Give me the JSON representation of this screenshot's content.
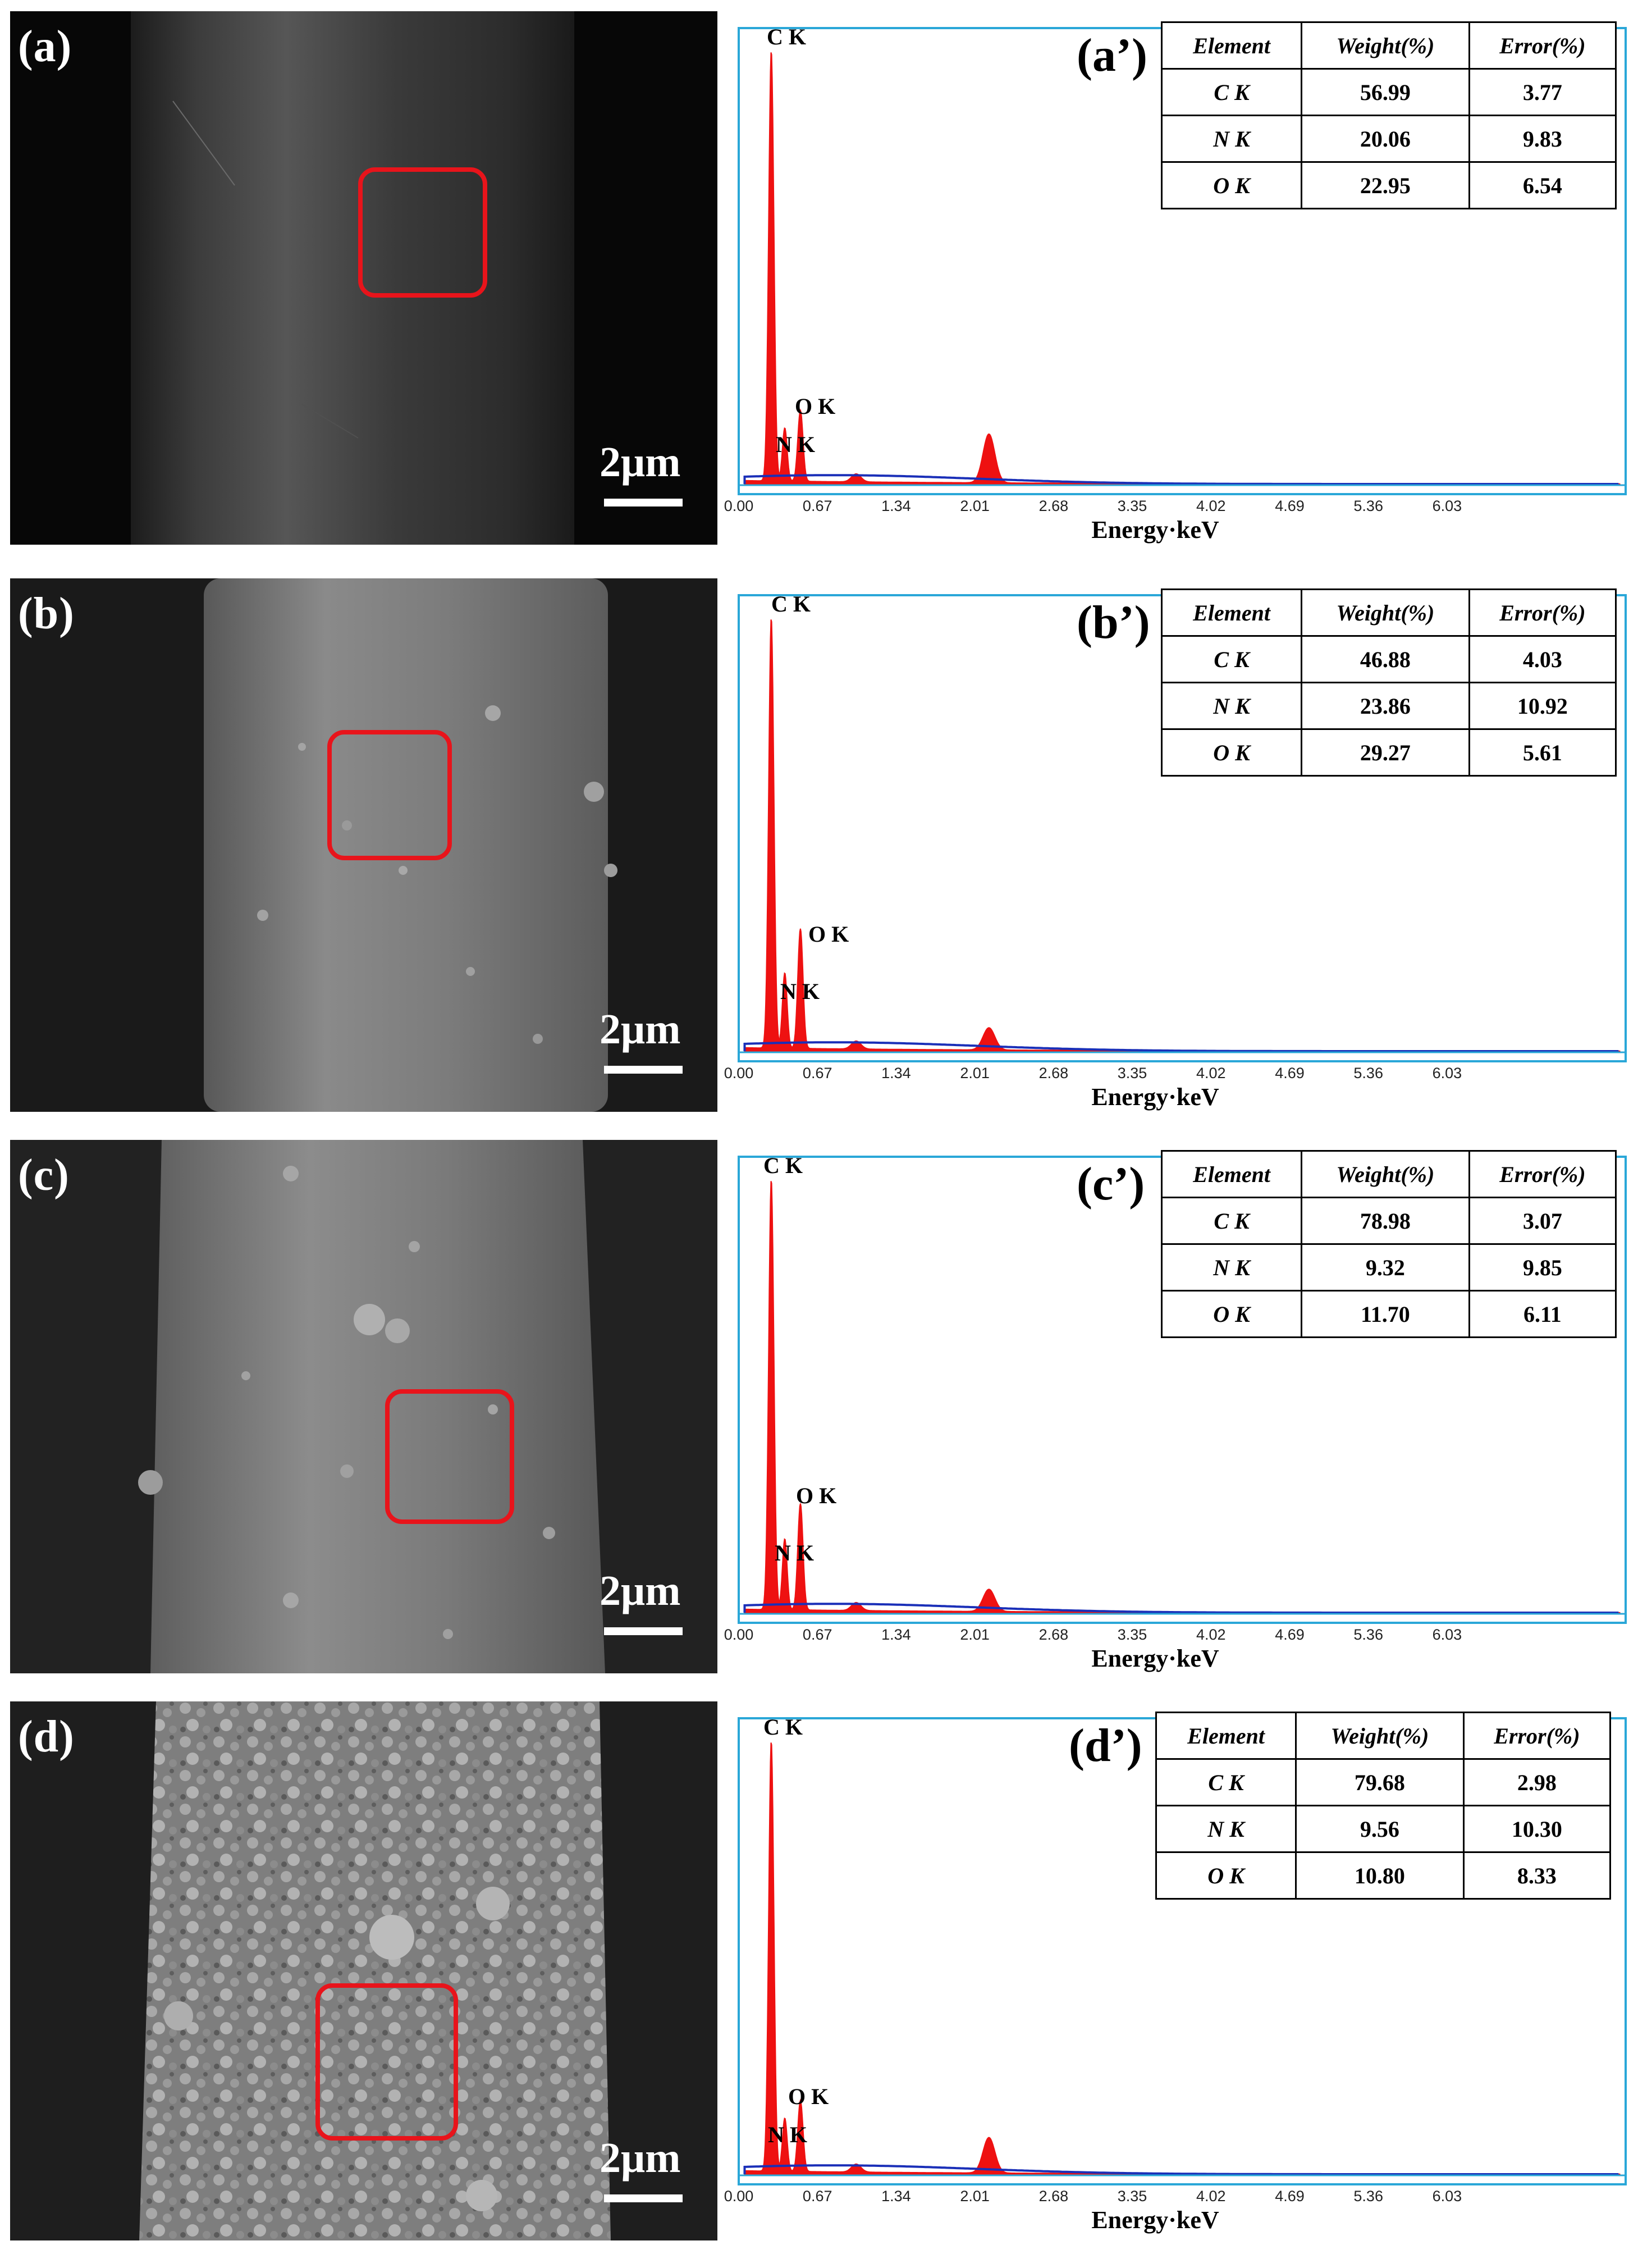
{
  "figure": {
    "scale_bar_text": "2μm",
    "axis_title": "Energy·keV",
    "x_ticks": [
      "0.00",
      "0.67",
      "1.34",
      "2.01",
      "2.68",
      "3.35",
      "4.02",
      "4.69",
      "5.36",
      "6.03"
    ],
    "table_headers": [
      "Element",
      "Weight(%)",
      "Error(%)"
    ],
    "peak_labels": {
      "c": "C K",
      "n": "N K",
      "o": "O K"
    },
    "colors": {
      "spectrum": "#ee1111",
      "background_trace": "#1a2fb8",
      "frame": "#2aa7d8",
      "roi": "#e8141b"
    }
  },
  "panels": [
    {
      "sem_label": "(a)",
      "eds_label": "(a’)",
      "rows": [
        {
          "element": "C K",
          "weight": "56.99",
          "error": "3.77"
        },
        {
          "element": "N K",
          "weight": "20.06",
          "error": "9.83"
        },
        {
          "element": "O K",
          "weight": "22.95",
          "error": "6.54"
        }
      ],
      "peaks": {
        "C": 0.97,
        "N": 0.12,
        "O": 0.16,
        "extra": 0.11
      }
    },
    {
      "sem_label": "(b)",
      "eds_label": "(b’)",
      "rows": [
        {
          "element": "C K",
          "weight": "46.88",
          "error": "4.03"
        },
        {
          "element": "N K",
          "weight": "23.86",
          "error": "10.92"
        },
        {
          "element": "O K",
          "weight": "29.27",
          "error": "5.61"
        }
      ],
      "peaks": {
        "C": 0.97,
        "N": 0.17,
        "O": 0.27,
        "extra": 0.05
      }
    },
    {
      "sem_label": "(c)",
      "eds_label": "(c’)",
      "rows": [
        {
          "element": "C K",
          "weight": "78.98",
          "error": "3.07"
        },
        {
          "element": "N K",
          "weight": "9.32",
          "error": "9.85"
        },
        {
          "element": "O K",
          "weight": "11.70",
          "error": "6.11"
        }
      ],
      "peaks": {
        "C": 0.97,
        "N": 0.16,
        "O": 0.24,
        "extra": 0.05
      }
    },
    {
      "sem_label": "(d)",
      "eds_label": "(d’)",
      "rows": [
        {
          "element": "C K",
          "weight": "79.68",
          "error": "2.98"
        },
        {
          "element": "N K",
          "weight": "9.56",
          "error": "10.30"
        },
        {
          "element": "O K",
          "weight": "10.80",
          "error": "8.33"
        }
      ],
      "peaks": {
        "C": 0.97,
        "N": 0.12,
        "O": 0.16,
        "extra": 0.08
      }
    }
  ]
}
